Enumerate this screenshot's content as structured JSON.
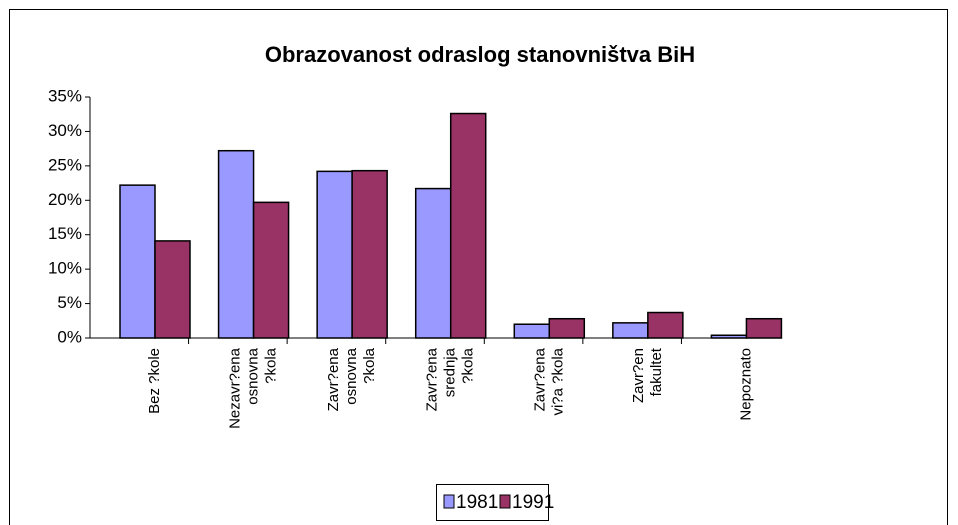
{
  "chart_data": {
    "type": "bar",
    "title": "Obrazovanost odraslog stanovništva BiH",
    "categories": [
      [
        "Bez ?kole"
      ],
      [
        "Nezavr?ena",
        "osnovna",
        "?kola"
      ],
      [
        "Zavr?ena",
        "osnovna",
        "?kola"
      ],
      [
        "Zavr?ena",
        "srednja",
        "?kola"
      ],
      [
        "Zavr?ena",
        "vi?a ?kola"
      ],
      [
        "Zavr?en",
        "fakultet"
      ],
      [
        "Nepoznato"
      ]
    ],
    "series": [
      {
        "name": "1981",
        "color": "#9999ff",
        "values": [
          22.2,
          27.2,
          24.2,
          21.7,
          2.0,
          2.2,
          0.4
        ]
      },
      {
        "name": "1991",
        "color": "#993366",
        "values": [
          14.1,
          19.7,
          24.3,
          32.6,
          2.8,
          3.7,
          2.8
        ]
      }
    ],
    "ylim": [
      0,
      35
    ],
    "yticks": [
      {
        "value": 0,
        "label": "0%"
      },
      {
        "value": 5,
        "label": "5%"
      },
      {
        "value": 10,
        "label": "10%"
      },
      {
        "value": 15,
        "label": "15%"
      },
      {
        "value": 20,
        "label": "20%"
      },
      {
        "value": 25,
        "label": "25%"
      },
      {
        "value": 30,
        "label": "30%"
      },
      {
        "value": 35,
        "label": "35%"
      }
    ],
    "legend": "bottom"
  }
}
